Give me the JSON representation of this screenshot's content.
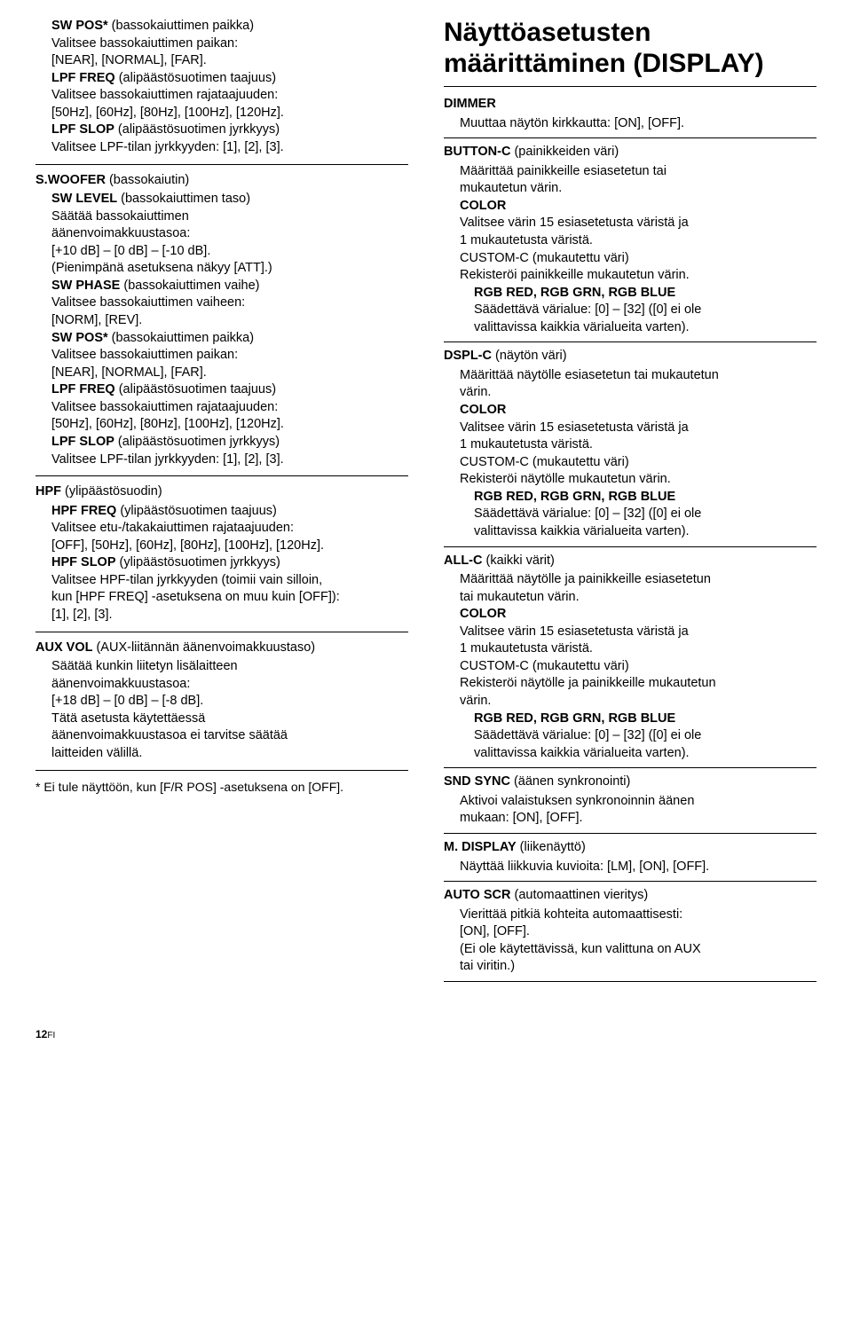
{
  "left": {
    "block1": [
      {
        "b": "SW POS*",
        "t": " (bassokaiuttimen paikka)"
      },
      {
        "t": "Valitsee bassokaiuttimen paikan:"
      },
      {
        "t": "[NEAR], [NORMAL], [FAR]."
      },
      {
        "b": "LPF FREQ",
        "t": " (alipäästösuotimen taajuus)"
      },
      {
        "t": "Valitsee bassokaiuttimen rajataajuuden:"
      },
      {
        "t": "[50Hz], [60Hz], [80Hz], [100Hz], [120Hz]."
      },
      {
        "b": "LPF SLOP",
        "t": " (alipäästösuotimen jyrkkyys)"
      },
      {
        "t": "Valitsee LPF-tilan jyrkkyyden: [1], [2], [3]."
      }
    ],
    "block2_head": {
      "b": "S.WOOFER",
      "t": " (bassokaiutin)"
    },
    "block2": [
      {
        "b": "SW LEVEL",
        "t": " (bassokaiuttimen taso)"
      },
      {
        "t": "Säätää bassokaiuttimen"
      },
      {
        "t": "äänenvoimakkuustasoa:"
      },
      {
        "t": "[+10 dB] – [0 dB] – [-10 dB]."
      },
      {
        "t": "(Pienimpänä asetuksena näkyy [ATT].)"
      },
      {
        "b": "SW PHASE",
        "t": " (bassokaiuttimen vaihe)"
      },
      {
        "t": "Valitsee bassokaiuttimen vaiheen:"
      },
      {
        "t": "[NORM], [REV]."
      },
      {
        "b": "SW POS*",
        "t": " (bassokaiuttimen paikka)"
      },
      {
        "t": "Valitsee bassokaiuttimen paikan:"
      },
      {
        "t": "[NEAR], [NORMAL], [FAR]."
      },
      {
        "b": "LPF FREQ",
        "t": " (alipäästösuotimen taajuus)"
      },
      {
        "t": "Valitsee bassokaiuttimen rajataajuuden:"
      },
      {
        "t": "[50Hz], [60Hz], [80Hz], [100Hz], [120Hz]."
      },
      {
        "b": "LPF SLOP",
        "t": " (alipäästösuotimen jyrkkyys)"
      },
      {
        "t": "Valitsee LPF-tilan jyrkkyyden: [1], [2], [3]."
      }
    ],
    "block3_head": {
      "b": "HPF",
      "t": " (ylipäästösuodin)"
    },
    "block3": [
      {
        "b": "HPF FREQ",
        "t": " (ylipäästösuotimen taajuus)"
      },
      {
        "t": "Valitsee etu-/takakaiuttimen rajataajuuden:"
      },
      {
        "t": "[OFF], [50Hz], [60Hz], [80Hz], [100Hz], [120Hz]."
      },
      {
        "b": "HPF SLOP",
        "t": " (ylipäästösuotimen jyrkkyys)"
      },
      {
        "t": "Valitsee HPF-tilan jyrkkyyden (toimii vain silloin,"
      },
      {
        "t": "kun [HPF FREQ] -asetuksena on muu kuin [OFF]):"
      },
      {
        "t": "[1], [2], [3]."
      }
    ],
    "block4_head": {
      "b": "AUX VOL",
      "t": " (AUX-liitännän äänenvoimakkuustaso)"
    },
    "block4": [
      {
        "t": "Säätää kunkin liitetyn lisälaitteen"
      },
      {
        "t": "äänenvoimakkuustasoa:"
      },
      {
        "t": "[+18 dB] – [0 dB] – [-8 dB]."
      },
      {
        "t": "Tätä asetusta käytettäessä"
      },
      {
        "t": "äänenvoimakkuustasoa ei tarvitse säätää"
      },
      {
        "t": "laitteiden välillä."
      }
    ],
    "footnote": "* Ei tule näyttöön, kun [F/R POS] -asetuksena on [OFF]."
  },
  "right": {
    "title1": "Näyttöasetusten",
    "title2": "määrittäminen (DISPLAY)",
    "dimmer_head": "DIMMER",
    "dimmer_body": "Muuttaa näytön kirkkautta: [ON], [OFF].",
    "buttonc_head": {
      "b": "BUTTON-C",
      "t": " (painikkeiden väri)"
    },
    "buttonc": [
      {
        "t": "Määrittää painikkeille esiasetetun tai"
      },
      {
        "t": "mukautetun värin."
      }
    ],
    "color_label": "COLOR",
    "color_body1": "Valitsee värin 15 esiasetetusta väristä ja",
    "color_body2": "1 mukautetusta väristä.",
    "customc_head": "CUSTOM-C (mukautettu väri)",
    "customc_body_btn": "Rekisteröi painikkeille mukautetun värin.",
    "rgb_label": "RGB RED, RGB GRN, RGB BLUE",
    "rgb_body1": "Säädettävä värialue: [0] – [32] ([0] ei ole",
    "rgb_body2": "valittavissa kaikkia värialueita varten).",
    "dsplc_head": {
      "b": "DSPL-C",
      "t": " (näytön väri)"
    },
    "dsplc": [
      {
        "t": "Määrittää näytölle esiasetetun tai mukautetun"
      },
      {
        "t": "värin."
      }
    ],
    "customc_body_dspl": "Rekisteröi näytölle mukautetun värin.",
    "allc_head": {
      "b": "ALL-C",
      "t": " (kaikki värit)"
    },
    "allc": [
      {
        "t": "Määrittää näytölle ja painikkeille esiasetetun"
      },
      {
        "t": "tai mukautetun värin."
      }
    ],
    "customc_body_all1": "Rekisteröi näytölle ja painikkeille mukautetun",
    "customc_body_all2": "värin.",
    "sndsync_head": {
      "b": "SND SYNC",
      "t": " (äänen synkronointi)"
    },
    "sndsync": [
      {
        "t": "Aktivoi valaistuksen synkronoinnin äänen"
      },
      {
        "t": "mukaan: [ON], [OFF]."
      }
    ],
    "mdisplay_head": {
      "b": "M. DISPLAY",
      "t": " (liikenäyttö)"
    },
    "mdisplay": "Näyttää liikkuvia kuvioita: [LM], [ON], [OFF].",
    "autoscr_head": {
      "b": "AUTO SCR",
      "t": " (automaattinen vieritys)"
    },
    "autoscr": [
      {
        "t": "Vierittää pitkiä kohteita automaattisesti:"
      },
      {
        "t": "[ON], [OFF]."
      },
      {
        "t": "(Ei ole käytettävissä, kun valittuna on AUX"
      },
      {
        "t": "tai viritin.)"
      }
    ]
  },
  "page_num": "12",
  "page_lang": "FI"
}
